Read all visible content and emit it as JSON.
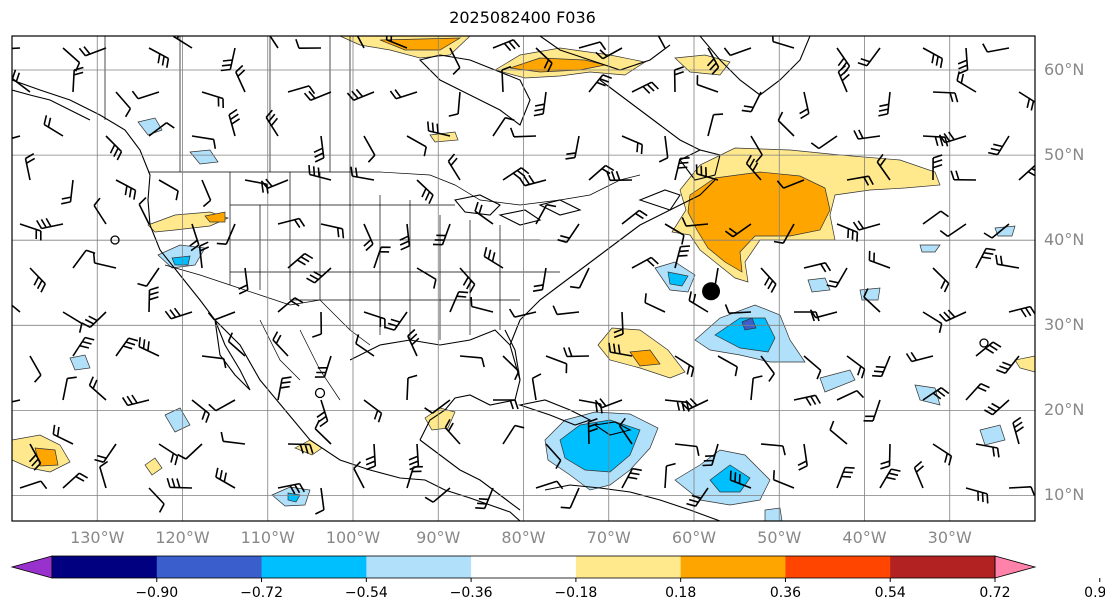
{
  "title": "2025082400 F036",
  "map": {
    "lon_min": -140,
    "lon_max": -20,
    "lat_min": 7,
    "lat_max": 64,
    "grid_lons": [
      -130,
      -120,
      -110,
      -100,
      -90,
      -80,
      -70,
      -60,
      -50,
      -40,
      -30
    ],
    "grid_lats": [
      10,
      20,
      30,
      40,
      50,
      60
    ],
    "lat_labels": [
      "10°N",
      "20°N",
      "30°N",
      "40°N",
      "50°N",
      "60°N"
    ],
    "lon_labels": [
      "130°W",
      "120°W",
      "110°W",
      "100°W",
      "90°W",
      "80°W",
      "70°W",
      "60°W",
      "50°W",
      "40°W",
      "30°W"
    ],
    "marker_lon": -58,
    "marker_lat": 34
  },
  "colorbar": {
    "colors": [
      "#9932cc",
      "#000080",
      "#3a5fcd",
      "#00bfff",
      "#b0e0fa",
      "#ffffff",
      "#ffe98c",
      "#ffa500",
      "#ff4500",
      "#b22222",
      "#ff82ab"
    ],
    "ticks": [
      "−0.90",
      "−0.72",
      "−0.54",
      "−0.36",
      "−0.18",
      "0.18",
      "0.36",
      "0.54",
      "0.72",
      "0.90"
    ]
  }
}
